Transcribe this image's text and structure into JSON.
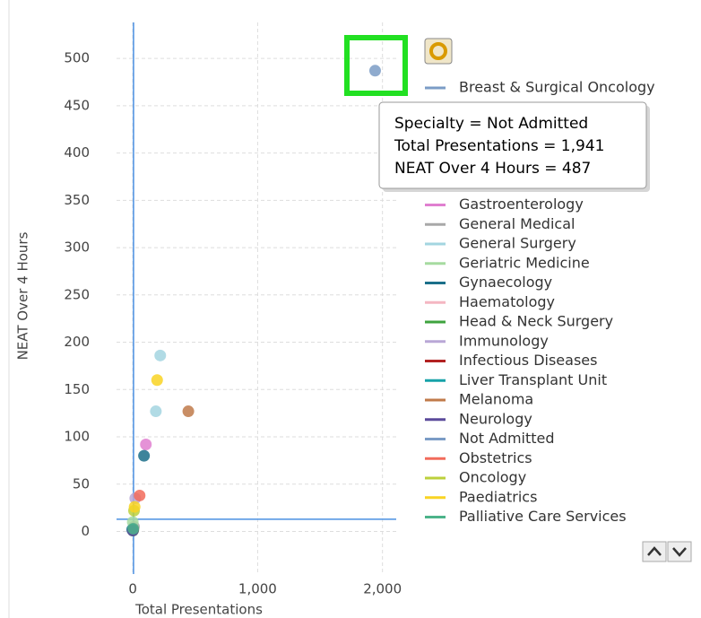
{
  "chart_data": {
    "type": "scatter",
    "x_label": "Total Presentations",
    "y_label": "NEAT Over 4 Hours",
    "xlim": [
      -130,
      2110
    ],
    "ylim": [
      -45,
      538
    ],
    "xticks": [
      0,
      {
        "value": 1000,
        "label": "1,000"
      },
      {
        "value": 2000,
        "label": "2,000"
      }
    ],
    "yticks": [
      0,
      50,
      100,
      150,
      200,
      250,
      300,
      350,
      400,
      450,
      500
    ],
    "grid": true,
    "reference_lines": {
      "x": 6,
      "y": 13,
      "color": "#4a90e2"
    },
    "series": [
      {
        "name": "Breast & Surgical Oncology",
        "color": "#7b9cc6",
        "x": [
          5
        ],
        "values": [
          2
        ]
      },
      {
        "name": "Gastroenterology",
        "color": "#e07fd0",
        "x": [
          105
        ],
        "values": [
          92
        ]
      },
      {
        "name": "General Medical",
        "color": "#a8a8a8",
        "x": [
          10
        ],
        "values": [
          5
        ]
      },
      {
        "name": "General Surgery",
        "color": "#a3d5e0",
        "x": [
          220,
          185
        ],
        "values": [
          186,
          127
        ]
      },
      {
        "name": "Geriatric Medicine",
        "color": "#a6dba0",
        "x": [
          0
        ],
        "values": [
          10
        ]
      },
      {
        "name": "Gynaecology",
        "color": "#1b6f8a",
        "x": [
          90,
          -5
        ],
        "values": [
          80,
          2
        ]
      },
      {
        "name": "Haematology",
        "color": "#f4b6c2",
        "x": [
          5
        ],
        "values": [
          3
        ]
      },
      {
        "name": "Head & Neck Surgery",
        "color": "#3ea33e",
        "x": [
          2
        ],
        "values": [
          1
        ]
      },
      {
        "name": "Immunology",
        "color": "#b9a7d6",
        "x": [
          20
        ],
        "values": [
          35
        ]
      },
      {
        "name": "Infectious Diseases",
        "color": "#b22222",
        "x": [
          3
        ],
        "values": [
          2
        ]
      },
      {
        "name": "Liver Transplant Unit",
        "color": "#17a2a8",
        "x": [
          0
        ],
        "values": [
          2
        ]
      },
      {
        "name": "Melanoma",
        "color": "#c07a4a",
        "x": [
          445
        ],
        "values": [
          127
        ]
      },
      {
        "name": "Neurology",
        "color": "#5b4a9b",
        "x": [
          0
        ],
        "values": [
          1
        ]
      },
      {
        "name": "Not Admitted",
        "color": "#7b9cc6",
        "x": [
          1941
        ],
        "values": [
          487
        ]
      },
      {
        "name": "Obstetrics",
        "color": "#f26b5b",
        "x": [
          55
        ],
        "values": [
          38
        ]
      },
      {
        "name": "Oncology",
        "color": "#bcd03c",
        "x": [
          10
        ],
        "values": [
          22
        ]
      },
      {
        "name": "Paediatrics",
        "color": "#f9d423",
        "x": [
          195,
          15
        ],
        "values": [
          160,
          26
        ]
      },
      {
        "name": "Palliative Care Services",
        "color": "#4cb38a",
        "x": [
          4
        ],
        "values": [
          3
        ]
      }
    ],
    "tooltip": [
      "Specialty = Not Admitted",
      "Total Presentations = 1,941",
      "NEAT Over 4 Hours = 487"
    ]
  }
}
